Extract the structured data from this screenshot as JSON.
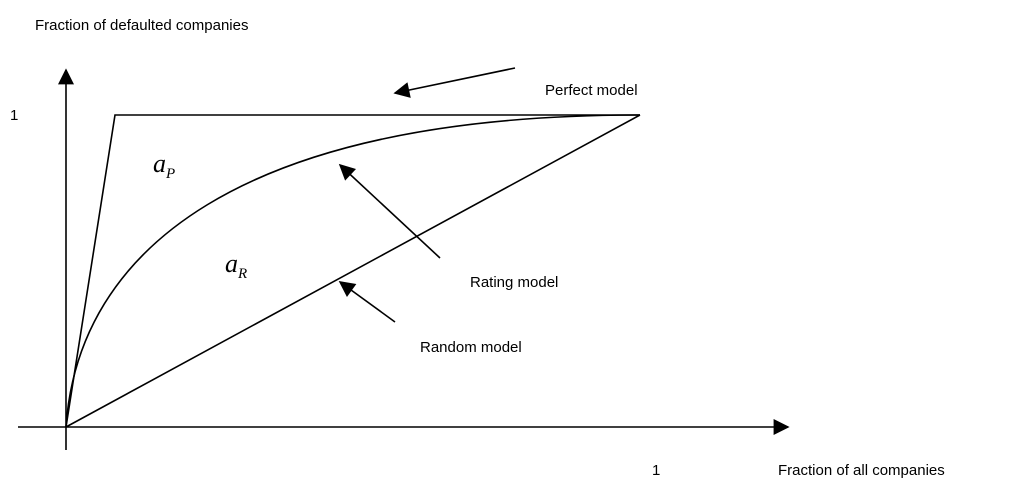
{
  "axes": {
    "y_label": "Fraction of defaulted companies",
    "y_tick": "1",
    "x_label": "Fraction of all companies",
    "x_tick": "1"
  },
  "areas": [
    {
      "symbol": "a",
      "subscript": "P"
    },
    {
      "symbol": "a",
      "subscript": "R"
    }
  ],
  "labels": {
    "perfect": "Perfect model",
    "rating": "Rating model",
    "random": "Random model"
  }
}
